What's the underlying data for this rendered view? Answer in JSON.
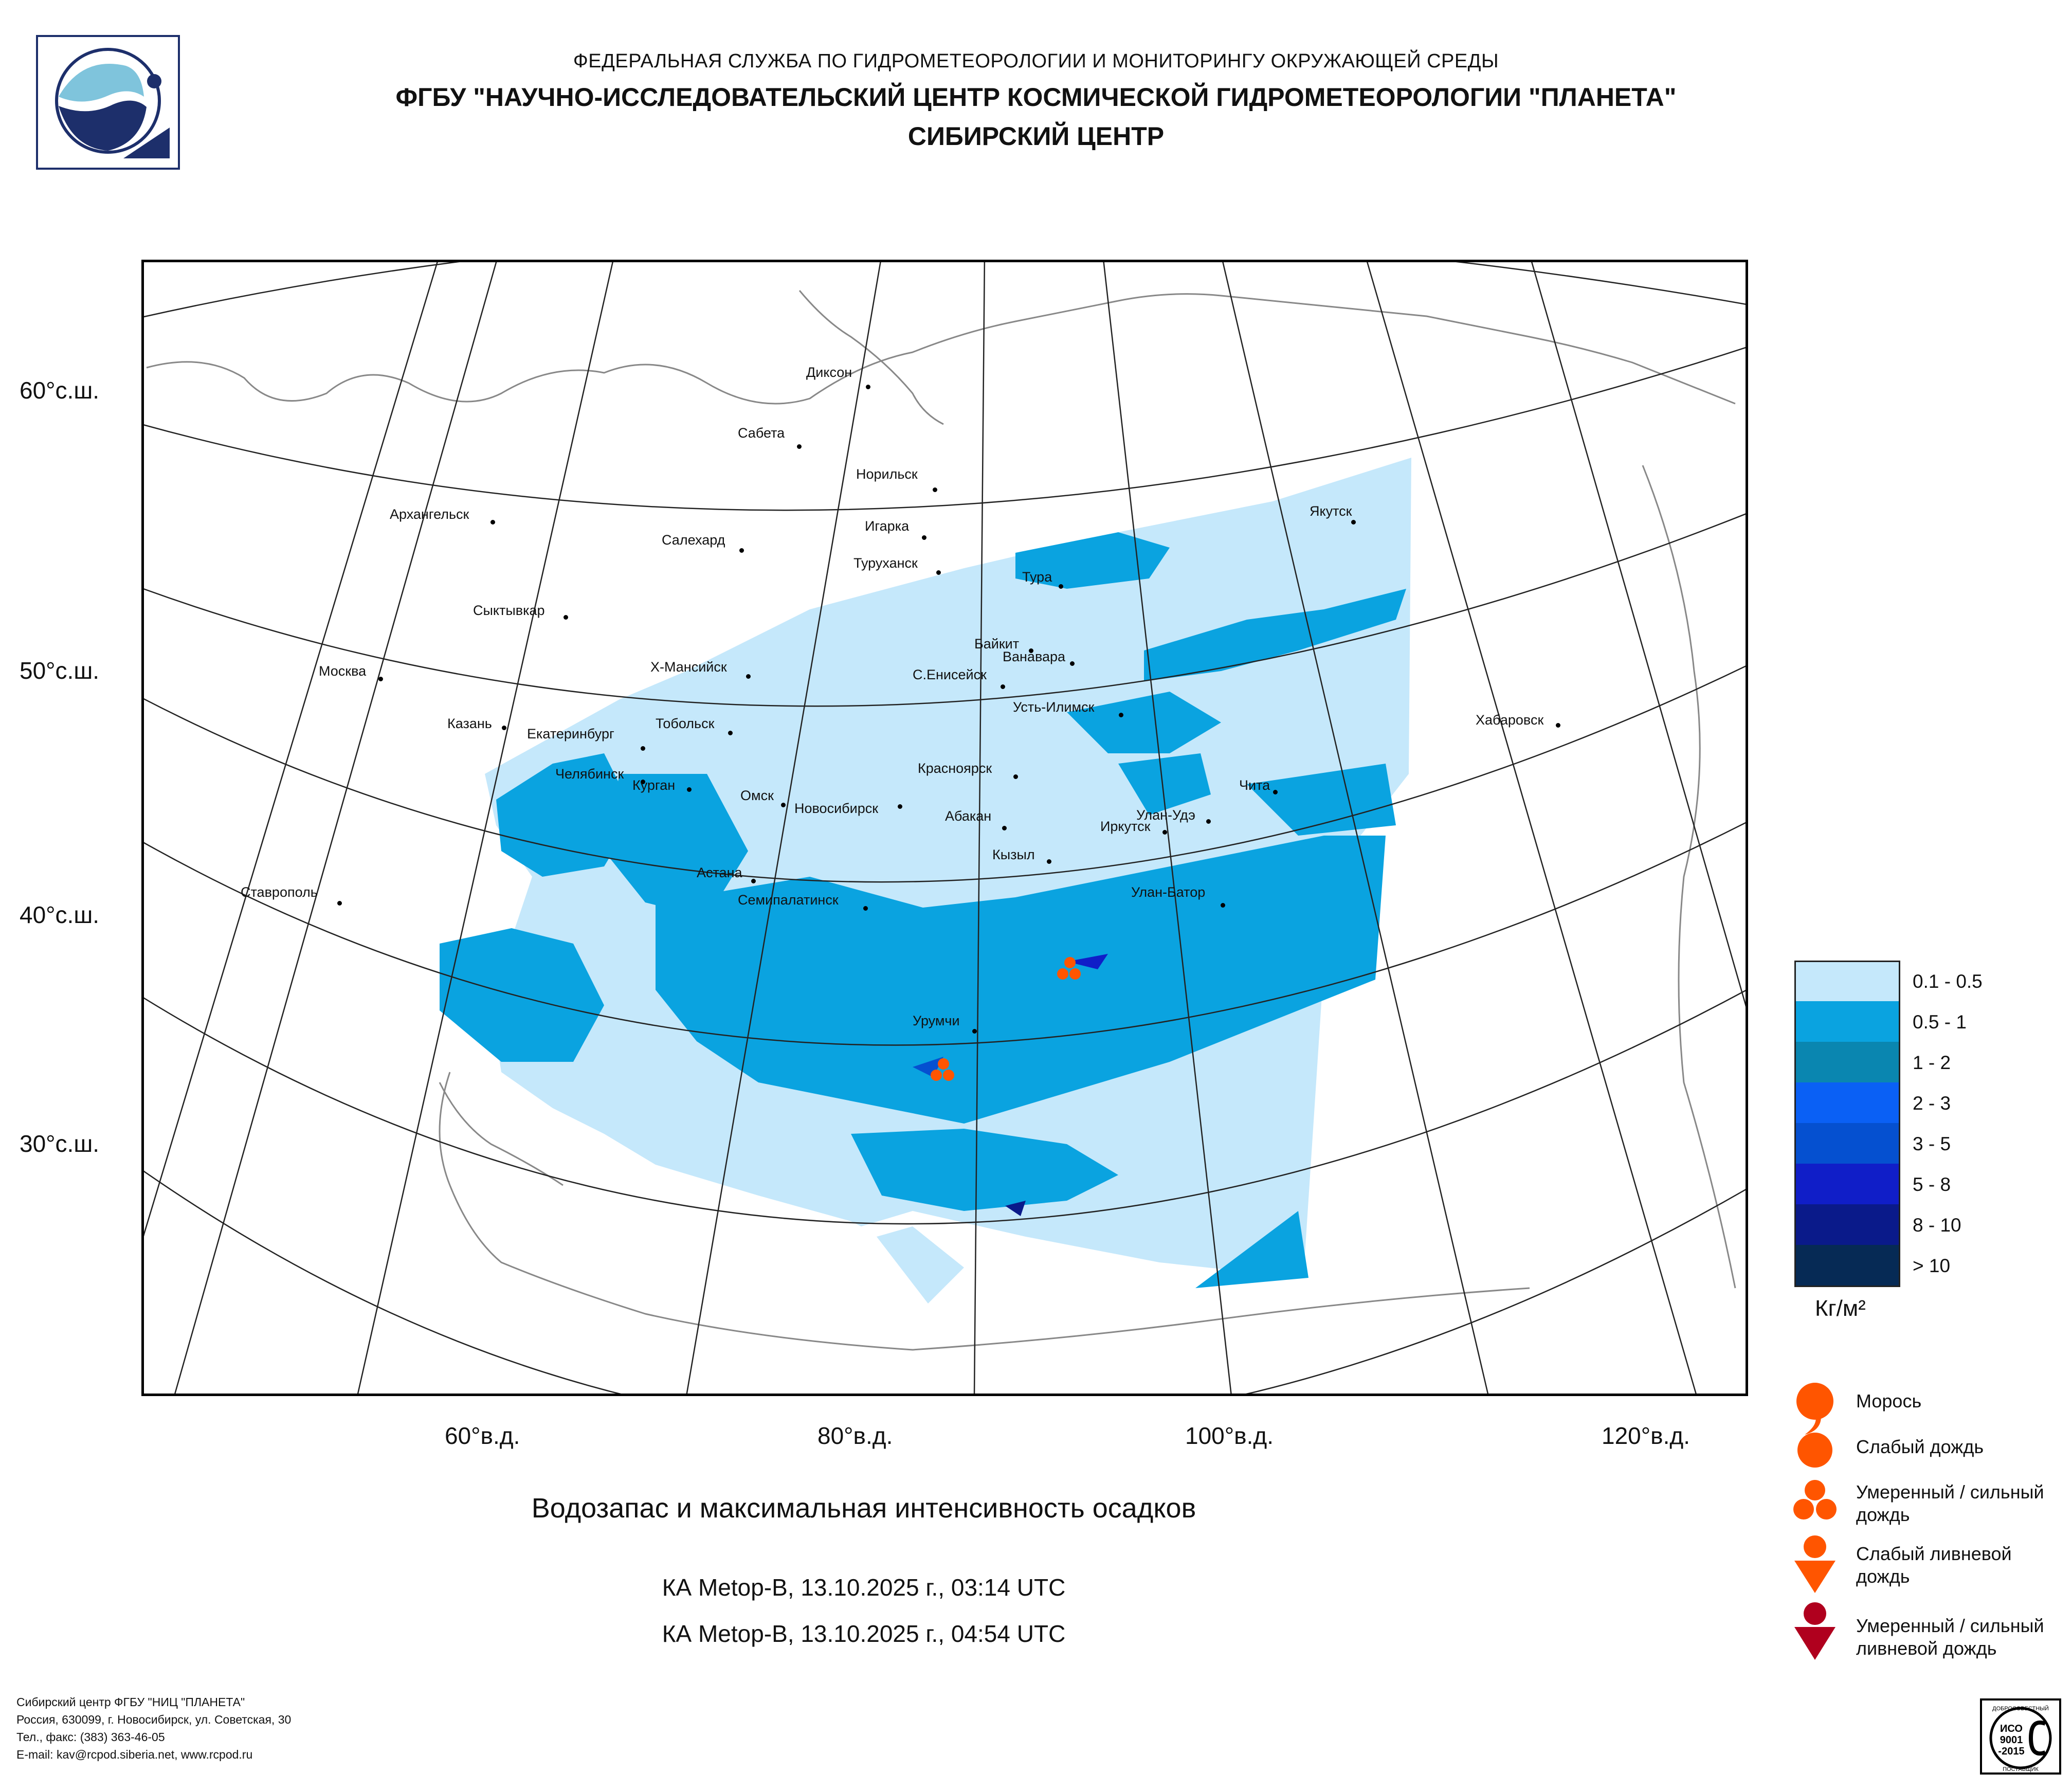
{
  "header": {
    "line1": "ФЕДЕРАЛЬНАЯ СЛУЖБА ПО ГИДРОМЕТЕОРОЛОГИИ И МОНИТОРИНГУ ОКРУЖАЮЩЕЙ СРЕДЫ",
    "line2": "ФГБУ \"НАУЧНО-ИССЛЕДОВАТЕЛЬСКИЙ ЦЕНТР КОСМИЧЕСКОЙ ГИДРОМЕТЕОРОЛОГИИ \"ПЛАНЕТА\"",
    "line3": "СИБИРСКИЙ ЦЕНТР"
  },
  "map": {
    "latitude_labels": [
      "60°с.ш.",
      "50°с.ш.",
      "40°с.ш.",
      "30°с.ш."
    ],
    "longitude_labels": [
      "60°в.д.",
      "80°в.д.",
      "100°в.д.",
      "120°в.д."
    ],
    "cities": [
      "Диксон",
      "Сабета",
      "Норильск",
      "Игарка",
      "Салехард",
      "Туруханск",
      "Якутск",
      "Архангельск",
      "Тура",
      "Сыктывкар",
      "Байкит",
      "Ванавара",
      "Х-Мансийск",
      "С.Енисейск",
      "Москва",
      "Усть-Илимск",
      "Казань",
      "Екатеринбург",
      "Тобольск",
      "Хабаровск",
      "Челябинск",
      "Красноярск",
      "Курган",
      "Чита",
      "Омск",
      "Новосибирск",
      "Абакан",
      "Улан-Удэ",
      "Иркутск",
      "Кызыл",
      "Астана",
      "Ставрополь",
      "Улан-Батор",
      "Семипалатинск",
      "Урумчи"
    ]
  },
  "legend": {
    "title": "Кг/м²",
    "bins": [
      {
        "label": "0.1 - 0.5",
        "color": "#c5e8fb"
      },
      {
        "label": "0.5 - 1",
        "color": "#0aa3e0"
      },
      {
        "label": "1 - 2",
        "color": "#0a86b0"
      },
      {
        "label": "2 - 3",
        "color": "#0a60f5"
      },
      {
        "label": "3 - 5",
        "color": "#0550d0"
      },
      {
        "label": "5 - 8",
        "color": "#101ec8"
      },
      {
        "label": "8 - 10",
        "color": "#0a1a8a"
      },
      {
        "label": "> 10",
        "color": "#062a55"
      }
    ]
  },
  "symbols": [
    {
      "icon": "drizzle-icon",
      "label": "Морось",
      "color": "#ff5500"
    },
    {
      "icon": "light-rain-icon",
      "label": "Слабый дождь",
      "color": "#ff5500"
    },
    {
      "icon": "moderate-rain-icon",
      "label": "Умеренный / сильный дождь",
      "color": "#ff5500"
    },
    {
      "icon": "light-shower-icon",
      "label": "Слабый ливневой дождь",
      "color": "#ff5500"
    },
    {
      "icon": "heavy-shower-icon",
      "label": "Умеренный / сильный ливневой дождь",
      "color": "#b0001e"
    }
  ],
  "chart_title": "Водозапас и максимальная интенсивность осадков",
  "passes": [
    "КА Metop-B, 13.10.2025 г., 03:14 UTC",
    "КА Metop-B, 13.10.2025 г., 04:54 UTC"
  ],
  "footer": [
    "Сибирский центр ФГБУ \"НИЦ \"ПЛАНЕТА\"",
    "Россия, 630099, г. Новосибирск, ул. Советская, 30",
    "Тел., факс: (383) 363-46-05",
    "E-mail: kav@rcpod.siberia.net, www.rcpod.ru"
  ],
  "iso_badge": {
    "top": "ДОБРОСОВЕСТНЫЙ",
    "line1": "ИСО",
    "line2": "9001",
    "line3": "-2015",
    "bottom": "ПОСТАВЩИК"
  }
}
